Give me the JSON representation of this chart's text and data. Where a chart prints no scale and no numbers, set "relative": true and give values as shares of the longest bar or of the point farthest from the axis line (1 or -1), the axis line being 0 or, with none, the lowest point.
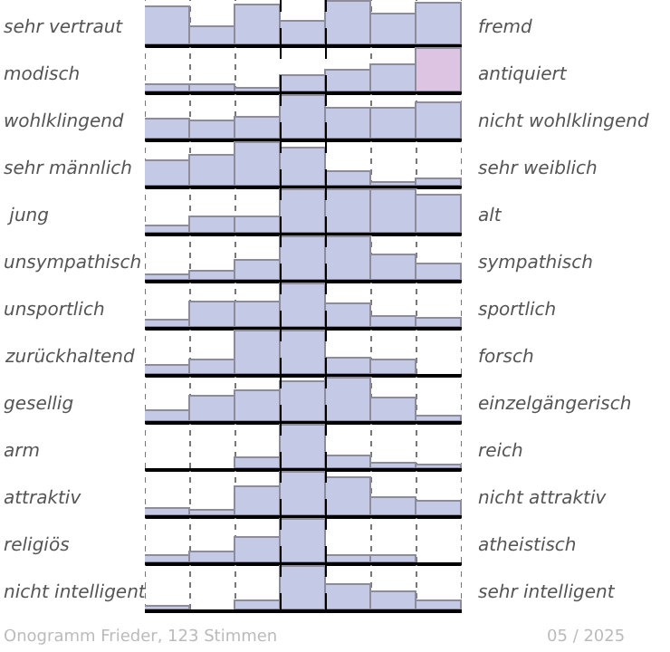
{
  "chart_data": [
    {
      "type": "bar",
      "relative": true,
      "ylabel": "sehr vertraut",
      "y2label": "fremd",
      "categories": [
        null,
        null,
        null,
        null,
        null,
        null,
        null
      ],
      "values": [
        0.86,
        0.42,
        0.93,
        0.55,
        1,
        0.7,
        0.97
      ],
      "color": "#c4cae6",
      "grid": "x"
    },
    {
      "type": "bar",
      "relative": true,
      "ylabel": "modisch",
      "y2label": "antiquiert",
      "categories": [
        null,
        null,
        null,
        null,
        null,
        null,
        null
      ],
      "values": [
        0.14,
        0.14,
        0.07,
        0.36,
        0.5,
        0.6,
        1
      ],
      "colors": [
        "#c4cae6",
        "#c4cae6",
        "#c4cae6",
        "#c4cae6",
        "#c4cae6",
        "#c4cae6",
        "#dcc4e2"
      ],
      "grid": "x"
    },
    {
      "type": "bar",
      "relative": true,
      "ylabel": "wohlklingend",
      "y2label": "nicht wohlklingend",
      "categories": [
        null,
        null,
        null,
        null,
        null,
        null,
        null
      ],
      "values": [
        0.44,
        0.42,
        0.5,
        1,
        0.68,
        0.71,
        0.82
      ],
      "color": "#c4cae6",
      "grid": "x"
    },
    {
      "type": "bar",
      "relative": true,
      "ylabel": "sehr männlich",
      "y2label": "sehr weiblich",
      "categories": [
        null,
        null,
        null,
        null,
        null,
        null,
        null
      ],
      "values": [
        0.56,
        0.69,
        1,
        0.89,
        0.3,
        0.06,
        0.16
      ],
      "color": "#c4cae6",
      "grid": "x"
    },
    {
      "type": "bar",
      "relative": true,
      "ylabel": " jung",
      "y2label": "alt",
      "categories": [
        null,
        null,
        null,
        null,
        null,
        null,
        null
      ],
      "values": [
        0.13,
        0.36,
        0.36,
        1,
        1,
        1,
        0.89
      ],
      "color": "#c4cae6",
      "grid": "x"
    },
    {
      "type": "bar",
      "relative": true,
      "ylabel": "unsympathisch",
      "y2label": "sympathisch",
      "categories": [
        null,
        null,
        null,
        null,
        null,
        null,
        null
      ],
      "values": [
        0.12,
        0.19,
        0.45,
        1,
        1,
        0.59,
        0.36
      ],
      "color": "#c4cae6",
      "grid": "x"
    },
    {
      "type": "bar",
      "relative": true,
      "ylabel": "unsportlich",
      "y2label": "sportlich",
      "categories": [
        null,
        null,
        null,
        null,
        null,
        null,
        null
      ],
      "values": [
        0.17,
        0.58,
        0.58,
        1,
        0.54,
        0.25,
        0.21
      ],
      "color": "#c4cae6",
      "grid": "x"
    },
    {
      "type": "bar",
      "relative": true,
      "ylabel": "zurückhaltend",
      "y2label": "forsch",
      "categories": [
        null,
        null,
        null,
        null,
        null,
        null,
        null
      ],
      "values": [
        0.19,
        0.3,
        1,
        1,
        0.35,
        0.3,
        null
      ],
      "color": "#c4cae6",
      "grid": "x"
    },
    {
      "type": "bar",
      "relative": true,
      "ylabel": "gesellig",
      "y2label": "einzelgängerisch",
      "categories": [
        null,
        null,
        null,
        null,
        null,
        null,
        null
      ],
      "values": [
        0.25,
        0.58,
        0.72,
        0.93,
        1,
        0.53,
        0.11
      ],
      "color": "#c4cae6",
      "grid": "x"
    },
    {
      "type": "bar",
      "relative": true,
      "ylabel": "arm",
      "y2label": "reich",
      "categories": [
        null,
        null,
        null,
        null,
        null,
        null,
        null
      ],
      "values": [
        0,
        0,
        0.25,
        1,
        0.28,
        0.11,
        0.06
      ],
      "color": "#c4cae6",
      "grid": "x"
    },
    {
      "type": "bar",
      "relative": true,
      "ylabel": "attraktiv",
      "y2label": "nicht attraktiv",
      "categories": [
        null,
        null,
        null,
        null,
        null,
        null,
        null
      ],
      "values": [
        0.17,
        0.1,
        0.65,
        1,
        0.86,
        0.42,
        0.3
      ],
      "color": "#c4cae6",
      "grid": "x"
    },
    {
      "type": "bar",
      "relative": true,
      "ylabel": "religiös",
      "y2label": "atheistisch",
      "categories": [
        null,
        null,
        null,
        null,
        null,
        null,
        null
      ],
      "values": [
        0.13,
        0.23,
        0.57,
        1,
        0.17,
        0.17,
        0
      ],
      "color": "#c4cae6",
      "grid": "x"
    },
    {
      "type": "bar",
      "relative": true,
      "ylabel": "nicht intelligent",
      "y2label": "sehr intelligent",
      "categories": [
        null,
        null,
        null,
        null,
        null,
        null,
        null
      ],
      "values": [
        0.05,
        0,
        0.18,
        1,
        0.58,
        0.42,
        0.21
      ],
      "color": "#c4cae6",
      "grid": "x",
      "annotations": [
        "Onogramm Frieder, 123 Stimmen",
        "05 / 2025"
      ]
    }
  ]
}
